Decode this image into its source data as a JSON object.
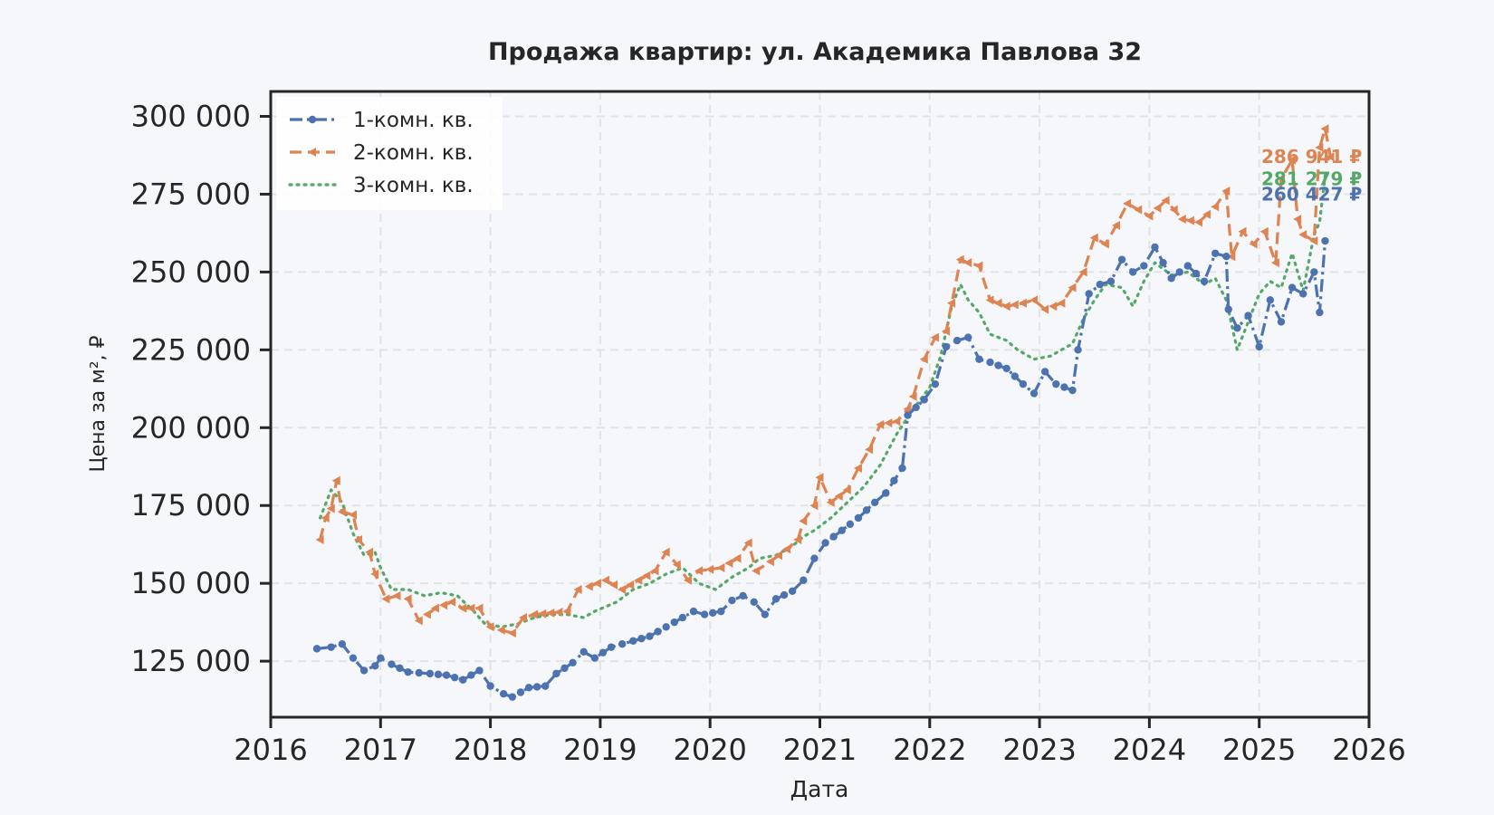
{
  "chart_data": {
    "type": "line",
    "title": "Продажа квартир: ул. Академика Павлова 32",
    "xlabel": "Дата",
    "ylabel": "Цена за м², ₽",
    "xlim": [
      2016,
      2026
    ],
    "ylim": [
      107000,
      308000
    ],
    "x_ticks": [
      "2016",
      "2017",
      "2018",
      "2019",
      "2020",
      "2021",
      "2022",
      "2023",
      "2024",
      "2025",
      "2026"
    ],
    "y_ticks": [
      "125 000",
      "150 000",
      "175 000",
      "200 000",
      "225 000",
      "250 000",
      "275 000",
      "300 000"
    ],
    "y_tick_values": [
      125000,
      150000,
      175000,
      200000,
      225000,
      250000,
      275000,
      300000
    ],
    "grid": true,
    "legend_position": "top-left",
    "series": [
      {
        "name": "1-комн. кв.",
        "color": "#4c72b0",
        "style": "dashdot-circle",
        "end_label": "260 427 ₽",
        "end_value": 275000,
        "points": [
          [
            2016.42,
            129000
          ],
          [
            2016.55,
            129500
          ],
          [
            2016.65,
            130500
          ],
          [
            2016.75,
            126000
          ],
          [
            2016.85,
            122000
          ],
          [
            2016.95,
            123500
          ],
          [
            2017.0,
            126000
          ],
          [
            2017.1,
            124000
          ],
          [
            2017.25,
            121500
          ],
          [
            2017.45,
            121000
          ],
          [
            2017.6,
            120500
          ],
          [
            2017.75,
            119000
          ],
          [
            2017.9,
            122000
          ],
          [
            2018.0,
            117000
          ],
          [
            2018.12,
            114500
          ],
          [
            2018.2,
            113500
          ],
          [
            2018.35,
            116500
          ],
          [
            2018.5,
            117000
          ],
          [
            2018.6,
            121000
          ],
          [
            2018.75,
            124500
          ],
          [
            2018.85,
            128000
          ],
          [
            2018.95,
            126000
          ],
          [
            2019.1,
            129500
          ],
          [
            2019.3,
            131500
          ],
          [
            2019.45,
            133000
          ],
          [
            2019.6,
            136000
          ],
          [
            2019.75,
            139000
          ],
          [
            2019.85,
            141000
          ],
          [
            2019.95,
            140000
          ],
          [
            2020.1,
            141000
          ],
          [
            2020.2,
            144500
          ],
          [
            2020.3,
            146000
          ],
          [
            2020.4,
            144000
          ],
          [
            2020.5,
            140000
          ],
          [
            2020.6,
            145000
          ],
          [
            2020.75,
            147500
          ],
          [
            2020.85,
            151000
          ],
          [
            2020.95,
            158000
          ],
          [
            2021.05,
            163000
          ],
          [
            2021.2,
            167000
          ],
          [
            2021.35,
            171000
          ],
          [
            2021.5,
            176000
          ],
          [
            2021.6,
            179000
          ],
          [
            2021.75,
            187000
          ],
          [
            2021.8,
            204000
          ],
          [
            2021.95,
            209000
          ],
          [
            2022.05,
            214000
          ],
          [
            2022.15,
            226000
          ],
          [
            2022.25,
            228000
          ],
          [
            2022.35,
            229000
          ],
          [
            2022.45,
            222000
          ],
          [
            2022.55,
            221000
          ],
          [
            2022.7,
            219000
          ],
          [
            2022.85,
            214000
          ],
          [
            2022.95,
            211000
          ],
          [
            2023.05,
            218000
          ],
          [
            2023.15,
            214000
          ],
          [
            2023.3,
            212000
          ],
          [
            2023.35,
            225000
          ],
          [
            2023.45,
            243000
          ],
          [
            2023.55,
            246000
          ],
          [
            2023.65,
            247000
          ],
          [
            2023.75,
            254000
          ],
          [
            2023.85,
            250000
          ],
          [
            2023.95,
            252000
          ],
          [
            2024.05,
            258000
          ],
          [
            2024.2,
            248000
          ],
          [
            2024.35,
            252000
          ],
          [
            2024.5,
            247000
          ],
          [
            2024.6,
            256000
          ],
          [
            2024.7,
            255000
          ],
          [
            2024.72,
            238000
          ],
          [
            2024.8,
            232000
          ],
          [
            2024.9,
            236000
          ],
          [
            2025.0,
            226000
          ],
          [
            2025.1,
            241000
          ],
          [
            2025.2,
            234000
          ],
          [
            2025.3,
            245000
          ],
          [
            2025.4,
            243000
          ],
          [
            2025.5,
            250000
          ],
          [
            2025.55,
            237000
          ],
          [
            2025.6,
            260000
          ]
        ]
      },
      {
        "name": "2-комн. кв.",
        "color": "#dd8452",
        "style": "dashed-triangle",
        "end_label": "286 941 ₽",
        "end_value": 287000,
        "points": [
          [
            2016.45,
            164000
          ],
          [
            2016.5,
            171000
          ],
          [
            2016.55,
            174000
          ],
          [
            2016.6,
            183000
          ],
          [
            2016.65,
            173000
          ],
          [
            2016.75,
            172000
          ],
          [
            2016.8,
            164000
          ],
          [
            2016.9,
            160000
          ],
          [
            2016.95,
            153000
          ],
          [
            2017.05,
            145000
          ],
          [
            2017.15,
            146000
          ],
          [
            2017.25,
            145000
          ],
          [
            2017.35,
            138000
          ],
          [
            2017.5,
            142000
          ],
          [
            2017.65,
            144000
          ],
          [
            2017.75,
            142000
          ],
          [
            2017.9,
            142000
          ],
          [
            2018.0,
            136000
          ],
          [
            2018.1,
            135000
          ],
          [
            2018.2,
            134000
          ],
          [
            2018.3,
            139000
          ],
          [
            2018.4,
            140000
          ],
          [
            2018.55,
            140500
          ],
          [
            2018.7,
            141000
          ],
          [
            2018.8,
            148000
          ],
          [
            2018.9,
            149000
          ],
          [
            2019.05,
            151000
          ],
          [
            2019.2,
            148000
          ],
          [
            2019.35,
            151000
          ],
          [
            2019.5,
            154000
          ],
          [
            2019.6,
            160000
          ],
          [
            2019.7,
            156000
          ],
          [
            2019.8,
            151000
          ],
          [
            2019.9,
            154000
          ],
          [
            2020.1,
            155000
          ],
          [
            2020.25,
            158000
          ],
          [
            2020.35,
            163000
          ],
          [
            2020.42,
            154000
          ],
          [
            2020.55,
            157000
          ],
          [
            2020.7,
            161000
          ],
          [
            2020.8,
            164000
          ],
          [
            2020.85,
            170000
          ],
          [
            2020.95,
            175000
          ],
          [
            2021.0,
            184000
          ],
          [
            2021.1,
            176000
          ],
          [
            2021.25,
            180000
          ],
          [
            2021.35,
            187000
          ],
          [
            2021.45,
            193000
          ],
          [
            2021.55,
            201000
          ],
          [
            2021.7,
            202000
          ],
          [
            2021.8,
            206000
          ],
          [
            2021.85,
            210000
          ],
          [
            2021.95,
            222000
          ],
          [
            2022.05,
            229000
          ],
          [
            2022.15,
            231000
          ],
          [
            2022.2,
            240000
          ],
          [
            2022.28,
            254000
          ],
          [
            2022.35,
            253000
          ],
          [
            2022.45,
            252000
          ],
          [
            2022.55,
            241000
          ],
          [
            2022.7,
            239000
          ],
          [
            2022.85,
            240000
          ],
          [
            2022.95,
            241000
          ],
          [
            2023.05,
            238000
          ],
          [
            2023.2,
            240000
          ],
          [
            2023.3,
            245000
          ],
          [
            2023.4,
            250000
          ],
          [
            2023.5,
            261000
          ],
          [
            2023.6,
            259000
          ],
          [
            2023.7,
            265000
          ],
          [
            2023.8,
            272000
          ],
          [
            2023.9,
            270000
          ],
          [
            2024.0,
            268000
          ],
          [
            2024.15,
            273000
          ],
          [
            2024.3,
            267000
          ],
          [
            2024.45,
            266000
          ],
          [
            2024.6,
            271000
          ],
          [
            2024.7,
            276000
          ],
          [
            2024.75,
            255000
          ],
          [
            2024.85,
            263000
          ],
          [
            2024.95,
            259000
          ],
          [
            2025.05,
            263000
          ],
          [
            2025.15,
            253000
          ],
          [
            2025.2,
            280000
          ],
          [
            2025.3,
            286000
          ],
          [
            2025.35,
            267000
          ],
          [
            2025.4,
            262000
          ],
          [
            2025.5,
            260000
          ],
          [
            2025.55,
            290000
          ],
          [
            2025.6,
            296000
          ],
          [
            2025.65,
            287000
          ]
        ]
      },
      {
        "name": "3-комн. кв.",
        "color": "#55a868",
        "style": "dotted",
        "end_label": "281 279 ₽",
        "end_value": 280000,
        "points": [
          [
            2016.45,
            171000
          ],
          [
            2016.55,
            180000
          ],
          [
            2016.65,
            176000
          ],
          [
            2016.75,
            166000
          ],
          [
            2016.85,
            159000
          ],
          [
            2016.95,
            160000
          ],
          [
            2017.0,
            155000
          ],
          [
            2017.1,
            148000
          ],
          [
            2017.25,
            148000
          ],
          [
            2017.4,
            146000
          ],
          [
            2017.55,
            147000
          ],
          [
            2017.7,
            146000
          ],
          [
            2017.85,
            141000
          ],
          [
            2017.95,
            137000
          ],
          [
            2018.1,
            136000
          ],
          [
            2018.25,
            137000
          ],
          [
            2018.4,
            139000
          ],
          [
            2018.55,
            140000
          ],
          [
            2018.7,
            140000
          ],
          [
            2018.85,
            139000
          ],
          [
            2018.95,
            141000
          ],
          [
            2019.15,
            144000
          ],
          [
            2019.3,
            148000
          ],
          [
            2019.45,
            150000
          ],
          [
            2019.6,
            153000
          ],
          [
            2019.75,
            155000
          ],
          [
            2019.9,
            150000
          ],
          [
            2020.05,
            148000
          ],
          [
            2020.2,
            152000
          ],
          [
            2020.35,
            155000
          ],
          [
            2020.45,
            158000
          ],
          [
            2020.6,
            159000
          ],
          [
            2020.75,
            162000
          ],
          [
            2020.85,
            165000
          ],
          [
            2020.95,
            167000
          ],
          [
            2021.1,
            171000
          ],
          [
            2021.25,
            176000
          ],
          [
            2021.4,
            181000
          ],
          [
            2021.55,
            188000
          ],
          [
            2021.7,
            198000
          ],
          [
            2021.85,
            206000
          ],
          [
            2022.0,
            213000
          ],
          [
            2022.1,
            223000
          ],
          [
            2022.2,
            239000
          ],
          [
            2022.28,
            246000
          ],
          [
            2022.35,
            241000
          ],
          [
            2022.45,
            237000
          ],
          [
            2022.55,
            230000
          ],
          [
            2022.7,
            228000
          ],
          [
            2022.8,
            225000
          ],
          [
            2022.95,
            222000
          ],
          [
            2023.1,
            223000
          ],
          [
            2023.2,
            225000
          ],
          [
            2023.3,
            227000
          ],
          [
            2023.4,
            235000
          ],
          [
            2023.5,
            241000
          ],
          [
            2023.6,
            246000
          ],
          [
            2023.75,
            245000
          ],
          [
            2023.85,
            239000
          ],
          [
            2023.95,
            247000
          ],
          [
            2024.05,
            253000
          ],
          [
            2024.2,
            249000
          ],
          [
            2024.35,
            250000
          ],
          [
            2024.5,
            246000
          ],
          [
            2024.6,
            248000
          ],
          [
            2024.7,
            241000
          ],
          [
            2024.8,
            225000
          ],
          [
            2024.9,
            234000
          ],
          [
            2025.0,
            243000
          ],
          [
            2025.1,
            247000
          ],
          [
            2025.2,
            245000
          ],
          [
            2025.3,
            256000
          ],
          [
            2025.4,
            244000
          ],
          [
            2025.5,
            262000
          ],
          [
            2025.55,
            266000
          ],
          [
            2025.6,
            281000
          ]
        ]
      }
    ]
  }
}
